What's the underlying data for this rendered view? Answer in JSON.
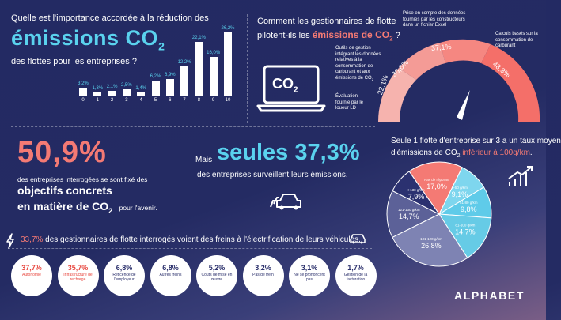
{
  "section1": {
    "title_top": "Quelle est l'importance accordée à la réduction des",
    "title_big": "émissions CO",
    "title_big_sub": "2",
    "title_bottom": "des flottes pour les entreprises ?"
  },
  "chart_data": [
    {
      "type": "bar",
      "categories": [
        "0",
        "1",
        "2",
        "3",
        "4",
        "5",
        "6",
        "7",
        "8",
        "9",
        "10"
      ],
      "values": [
        3.2,
        1.3,
        2.1,
        2.5,
        1.4,
        6.2,
        6.9,
        12.2,
        22.1,
        16.0,
        26.2
      ],
      "value_labels": [
        "3,2%",
        "1,3%",
        "2,1%",
        "2,5%",
        "1,4%",
        "6,2%",
        "6,9%",
        "12,2%",
        "22,1%",
        "16,0%",
        "26,2%"
      ],
      "title": "",
      "xlabel": "",
      "ylabel": "",
      "colors": {
        "bar": "#ffffff",
        "label": "#5ad2ee"
      }
    },
    {
      "type": "pie",
      "categories": [
        "Pas de réponse",
        "0-50 g/km",
        "51-80 g/km",
        "81-100 g/km",
        "101-120 g/km",
        "121-130 g/km",
        ">130 g/km"
      ],
      "values": [
        17.0,
        9.1,
        9.8,
        14.7,
        26.8,
        14.7,
        7.9
      ],
      "value_labels": [
        "17,0%",
        "9,1%",
        "9,8%",
        "14,7%",
        "26,8%",
        "14,7%",
        "7,9%"
      ],
      "colors": [
        "#f47a74",
        "#7ed6ee",
        "#5fcbe9",
        "#66cbe6",
        "#7e83b3",
        "#5c6198",
        "#2b3170"
      ]
    }
  ],
  "section2": {
    "title_pre": "Comment les gestionnaires de flotte",
    "title_pre2": "pilotent-ils les",
    "title_highlight": "émissions de CO",
    "title_highlight_sub": "2",
    "title_end": " ?",
    "label_excel": "Prise en compte des données fournies par les constructeurs dans un fichier Excel",
    "label_calc": "Calculs basés sur la consommation de carburant",
    "label_tools": "Outils de gestion intégrant les données relatives à la consommation de carburant et aux émissions de CO",
    "label_tools_sub": "2",
    "label_eval": "Évaluation fournie par le loueur LD",
    "co2_label": "CO",
    "co2_sub": "2",
    "gauge_values": [
      "22,1%",
      "30,6%",
      "37,1%",
      "48,3%"
    ]
  },
  "section3": {
    "big_pct": "50,9%",
    "line1": "des entreprises interrogées se sont fixé des",
    "bold1": "objectifs concrets",
    "bold2_pre": "en matière de CO",
    "bold2_sub": "2",
    "line_end": "pour l'avenir."
  },
  "section4": {
    "pre": "Mais",
    "big": "seules 37,3%",
    "line": "des entreprises surveillent leurs émissions."
  },
  "section5": {
    "title1": "Seule 1 flotte d'entreprise sur 3 a un taux moyen",
    "title2_pre": "d'émissions de CO",
    "title2_sub": "2",
    "title2_highlight": " inférieur à 100g/km",
    "title2_end": "."
  },
  "section6": {
    "lead_pct": "33,7%",
    "lead_text": " des gestionnaires de flotte interrogés voient des freins à l'électrification de leurs véhicules.",
    "circles": [
      {
        "pct": "37,7%",
        "label": "Autonomie",
        "red": true
      },
      {
        "pct": "35,7%",
        "label": "Infrastructure de recharge",
        "red": true
      },
      {
        "pct": "6,8%",
        "label": "Réticence de l'employeur",
        "red": false
      },
      {
        "pct": "6,8%",
        "label": "Autres freins",
        "red": false
      },
      {
        "pct": "5,2%",
        "label": "Coûts de mise en œuvre",
        "red": false
      },
      {
        "pct": "3,2%",
        "label": "Pas de frein",
        "red": false
      },
      {
        "pct": "3,1%",
        "label": "Ne se prononcent pas",
        "red": false
      },
      {
        "pct": "1,7%",
        "label": "Gestion de la facturation",
        "red": false
      }
    ]
  },
  "brand": {
    "logo": "ALPHABET"
  }
}
